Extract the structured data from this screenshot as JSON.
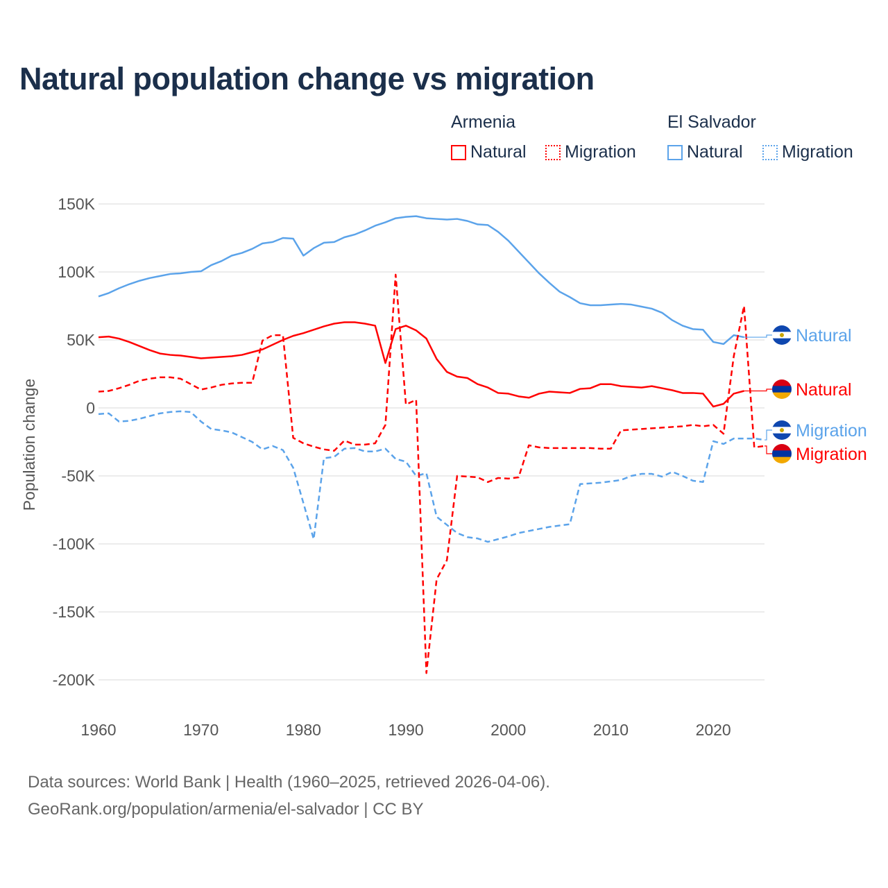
{
  "title": "Natural population change vs migration",
  "legend": {
    "groups": [
      {
        "name": "Armenia",
        "color": "#ff0000",
        "items": [
          "Natural",
          "Migration"
        ]
      },
      {
        "name": "El Salvador",
        "color": "#5ba3ea",
        "items": [
          "Natural",
          "Migration"
        ]
      }
    ]
  },
  "footer": {
    "line1": "Data sources: World Bank | Health (1960–2025, retrieved 2026-04-06).",
    "line2": "GeoRank.org/population/armenia/el-salvador | CC BY"
  },
  "chart_data": {
    "type": "line",
    "title": "Natural population change vs migration",
    "xlabel": "",
    "ylabel": "Population change",
    "x_start": 1960,
    "xlim": [
      1960,
      2025
    ],
    "ylim": [
      -200000,
      150000
    ],
    "x_ticks": [
      1960,
      1970,
      1980,
      1990,
      2000,
      2010,
      2020
    ],
    "x_tick_labels": [
      "1960",
      "1970",
      "1980",
      "1990",
      "2000",
      "2010",
      "2020"
    ],
    "y_ticks": [
      150000,
      100000,
      50000,
      0,
      -50000,
      -100000,
      -150000,
      -200000
    ],
    "y_tick_labels": [
      "150K",
      "100K",
      "50K",
      "0",
      "-50K",
      "-100K",
      "-150K",
      "-200K"
    ],
    "grid": true,
    "legend_position": "top-right",
    "series": [
      {
        "name": "El Salvador Natural",
        "country": "El Salvador",
        "kind": "Natural",
        "color": "#5ba3ea",
        "dashed": false,
        "end_label": "Natural",
        "values": [
          82,
          84.5,
          88,
          91,
          93.5,
          95.5,
          97,
          98.5,
          99,
          100,
          100.5,
          105,
          108,
          112,
          114,
          117,
          121,
          122,
          125,
          124.5,
          112,
          117.5,
          121.5,
          122,
          125.5,
          127.5,
          130.5,
          134,
          136.5,
          139.5,
          140.5,
          141,
          139.5,
          139,
          138.5,
          139,
          137.5,
          135,
          134.5,
          129.5,
          123,
          115,
          107,
          99,
          92,
          85.5,
          81.5,
          77,
          75.5,
          75.5,
          76,
          76.5,
          76,
          74.5,
          73,
          70,
          64.5,
          60.5,
          58,
          57.5,
          48.5,
          47,
          53.5,
          52
        ]
      },
      {
        "name": "Armenia Natural",
        "country": "Armenia",
        "kind": "Natural",
        "color": "#ff0000",
        "dashed": false,
        "end_label": "Natural",
        "values": [
          52,
          52.5,
          51,
          48.5,
          45.5,
          42.5,
          40,
          39,
          38.5,
          37.5,
          36.5,
          37,
          37.5,
          38,
          39,
          41,
          43,
          46.5,
          50,
          53,
          55,
          57.5,
          60,
          62,
          63,
          63,
          62,
          60.5,
          33,
          58,
          60.5,
          57,
          51,
          36,
          26.5,
          23,
          22,
          17.5,
          15,
          11,
          10.5,
          8.5,
          7.5,
          10.5,
          12,
          11.5,
          11,
          14,
          14.5,
          17.5,
          17.5,
          16,
          15.5,
          15,
          16,
          14.5,
          13,
          11,
          11,
          10.5,
          1,
          3,
          10.5,
          12.5
        ]
      },
      {
        "name": "El Salvador Migration",
        "country": "El Salvador",
        "kind": "Migration",
        "color": "#5ba3ea",
        "dashed": true,
        "end_label": "Migration",
        "values": [
          -4.5,
          -4,
          -10,
          -9.5,
          -8,
          -6,
          -4,
          -3,
          -2.5,
          -3,
          -10,
          -15.5,
          -16.5,
          -18,
          -21.5,
          -25,
          -30.5,
          -28,
          -31,
          -44,
          -70,
          -96.5,
          -37,
          -36,
          -30,
          -29.5,
          -32,
          -32,
          -30,
          -37.5,
          -39.5,
          -50,
          -48,
          -80,
          -86,
          -92,
          -95,
          -96,
          -98.5,
          -96.5,
          -94.5,
          -92,
          -90.5,
          -89,
          -87.5,
          -86.5,
          -85.5,
          -56,
          -55.5,
          -55,
          -54,
          -53,
          -50,
          -48.5,
          -48.5,
          -50.5,
          -47,
          -50,
          -53.5,
          -54.5,
          -24.5,
          -26.5,
          -22.5,
          -22.5,
          -22.5,
          -23.5
        ]
      },
      {
        "name": "Armenia Migration",
        "country": "Armenia",
        "kind": "Migration",
        "color": "#ff0000",
        "dashed": true,
        "end_label": "Migration",
        "values": [
          12,
          12.5,
          14.5,
          17,
          20,
          21.5,
          22.5,
          22.5,
          21.5,
          17.5,
          13.5,
          15,
          17,
          18,
          18.5,
          18.5,
          49.5,
          53.5,
          53.5,
          -22,
          -26,
          -28.5,
          -30.5,
          -31.5,
          -24,
          -27,
          -27,
          -26,
          -12.5,
          98,
          2.5,
          6,
          -195,
          -126,
          -112,
          -50,
          -50.5,
          -51,
          -54.5,
          -51.5,
          -52,
          -51,
          -27.5,
          -29,
          -29.5,
          -29.5,
          -29.5,
          -29.5,
          -29.5,
          -30,
          -30,
          -16.5,
          -16,
          -15.5,
          -15,
          -14.5,
          -14,
          -13.5,
          -12.5,
          -13.5,
          -12.5,
          -19,
          38,
          75,
          -29,
          -28
        ]
      }
    ],
    "value_unit_multiplier": 1000
  }
}
